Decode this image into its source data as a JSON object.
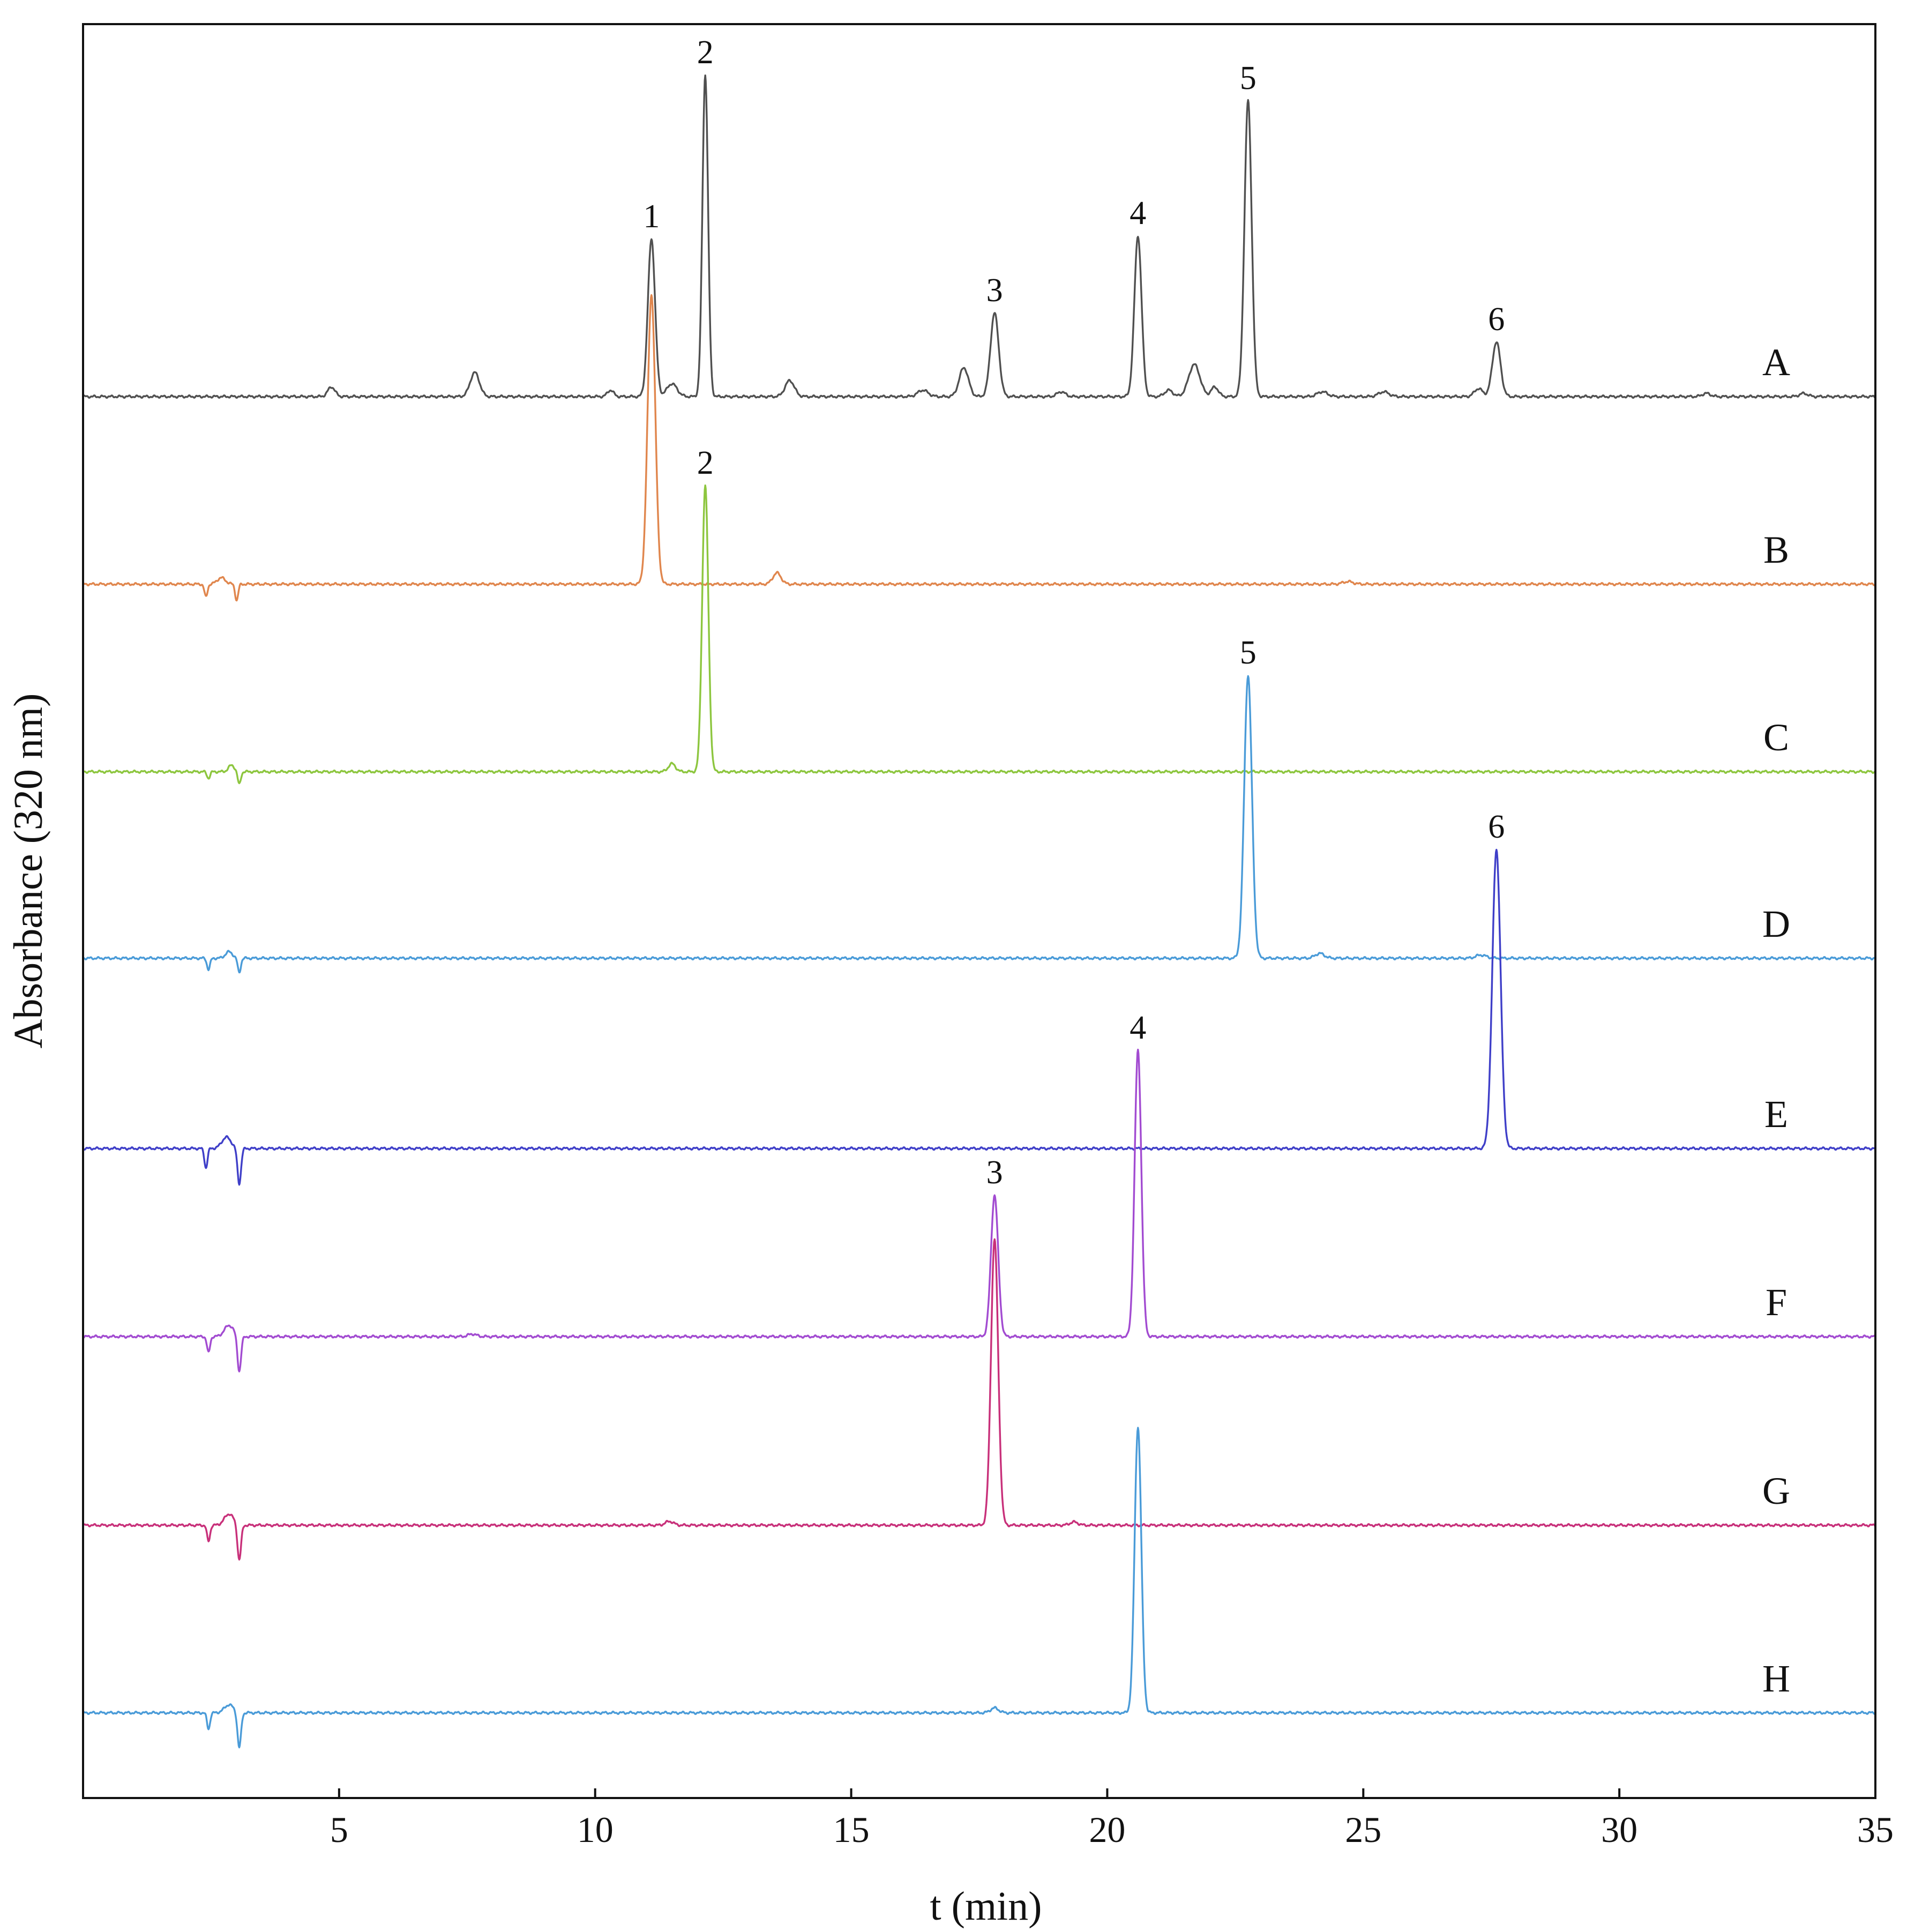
{
  "chart_data": {
    "type": "line",
    "title": "",
    "xlabel": "t (min)",
    "ylabel": "Absorbance (320 nm)",
    "xlim": [
      0,
      35
    ],
    "x_ticks": [
      5,
      10,
      15,
      20,
      25,
      30,
      35
    ],
    "grid": false,
    "legend": "none",
    "series": [
      {
        "name": "A",
        "color": "#505050",
        "peaks": [
          {
            "t": 4.85,
            "h": 0.03,
            "w": 0.07
          },
          {
            "t": 7.65,
            "h": 0.075,
            "w": 0.09
          },
          {
            "t": 10.3,
            "h": 0.02,
            "w": 0.06
          },
          {
            "t": 11.1,
            "h": 0.49,
            "w": 0.07,
            "label": "1"
          },
          {
            "t": 11.5,
            "h": 0.04,
            "w": 0.1
          },
          {
            "t": 12.15,
            "h": 1.0,
            "w": 0.055,
            "label": "2"
          },
          {
            "t": 13.8,
            "h": 0.05,
            "w": 0.09
          },
          {
            "t": 16.4,
            "h": 0.02,
            "w": 0.1
          },
          {
            "t": 17.2,
            "h": 0.09,
            "w": 0.09
          },
          {
            "t": 17.8,
            "h": 0.26,
            "w": 0.08,
            "label": "3"
          },
          {
            "t": 19.1,
            "h": 0.015,
            "w": 0.08
          },
          {
            "t": 20.6,
            "h": 0.5,
            "w": 0.07,
            "label": "4"
          },
          {
            "t": 21.2,
            "h": 0.02,
            "w": 0.08
          },
          {
            "t": 21.7,
            "h": 0.1,
            "w": 0.11
          },
          {
            "t": 22.1,
            "h": 0.03,
            "w": 0.07
          },
          {
            "t": 22.75,
            "h": 0.92,
            "w": 0.07,
            "label": "5"
          },
          {
            "t": 24.2,
            "h": 0.015,
            "w": 0.1
          },
          {
            "t": 25.4,
            "h": 0.015,
            "w": 0.1
          },
          {
            "t": 27.25,
            "h": 0.025,
            "w": 0.08
          },
          {
            "t": 27.6,
            "h": 0.17,
            "w": 0.08,
            "label": "6"
          },
          {
            "t": 31.7,
            "h": 0.01,
            "w": 0.08
          },
          {
            "t": 33.6,
            "h": 0.01,
            "w": 0.08
          }
        ]
      },
      {
        "name": "B",
        "color": "#E0864D",
        "peaks": [
          {
            "t": 2.4,
            "h": -0.04,
            "w": 0.03
          },
          {
            "t": 2.7,
            "h": 0.02,
            "w": 0.08
          },
          {
            "t": 3.0,
            "h": -0.05,
            "w": 0.03
          },
          {
            "t": 11.1,
            "h": 0.9,
            "w": 0.075
          },
          {
            "t": 13.55,
            "h": 0.035,
            "w": 0.08
          },
          {
            "t": 24.7,
            "h": 0.008,
            "w": 0.1
          }
        ]
      },
      {
        "name": "C",
        "color": "#8DC63F",
        "peaks": [
          {
            "t": 2.45,
            "h": -0.02,
            "w": 0.03
          },
          {
            "t": 2.9,
            "h": 0.02,
            "w": 0.06
          },
          {
            "t": 3.05,
            "h": -0.04,
            "w": 0.03
          },
          {
            "t": 11.5,
            "h": 0.025,
            "w": 0.07
          },
          {
            "t": 12.15,
            "h": 0.89,
            "w": 0.06,
            "label": "2"
          }
        ]
      },
      {
        "name": "D",
        "color": "#4A9BD8",
        "peaks": [
          {
            "t": 2.45,
            "h": -0.035,
            "w": 0.03
          },
          {
            "t": 2.85,
            "h": 0.02,
            "w": 0.07
          },
          {
            "t": 3.05,
            "h": -0.045,
            "w": 0.03
          },
          {
            "t": 22.75,
            "h": 0.88,
            "w": 0.075,
            "label": "5"
          },
          {
            "t": 24.15,
            "h": 0.015,
            "w": 0.09
          },
          {
            "t": 27.3,
            "h": 0.01,
            "w": 0.1
          }
        ]
      },
      {
        "name": "E",
        "color": "#3F3FC8",
        "peaks": [
          {
            "t": 2.4,
            "h": -0.06,
            "w": 0.03
          },
          {
            "t": 2.8,
            "h": 0.035,
            "w": 0.09
          },
          {
            "t": 3.05,
            "h": -0.11,
            "w": 0.035
          },
          {
            "t": 27.6,
            "h": 0.93,
            "w": 0.08,
            "label": "6"
          }
        ]
      },
      {
        "name": "F",
        "color": "#A24BD1",
        "peaks": [
          {
            "t": 2.45,
            "h": -0.05,
            "w": 0.03
          },
          {
            "t": 2.85,
            "h": 0.035,
            "w": 0.09
          },
          {
            "t": 3.05,
            "h": -0.11,
            "w": 0.035
          },
          {
            "t": 7.6,
            "h": 0.008,
            "w": 0.08
          },
          {
            "t": 17.8,
            "h": 0.44,
            "w": 0.07,
            "label": "3"
          },
          {
            "t": 20.6,
            "h": 0.89,
            "w": 0.065,
            "label": "4"
          }
        ]
      },
      {
        "name": "G",
        "color": "#C8307A",
        "peaks": [
          {
            "t": 2.45,
            "h": -0.05,
            "w": 0.03
          },
          {
            "t": 2.85,
            "h": 0.035,
            "w": 0.09
          },
          {
            "t": 3.05,
            "h": -0.11,
            "w": 0.035
          },
          {
            "t": 11.45,
            "h": 0.012,
            "w": 0.08
          },
          {
            "t": 17.8,
            "h": 0.89,
            "w": 0.07
          },
          {
            "t": 19.35,
            "h": 0.01,
            "w": 0.08
          }
        ]
      },
      {
        "name": "H",
        "color": "#4A9BD8",
        "peaks": [
          {
            "t": 2.45,
            "h": -0.05,
            "w": 0.03
          },
          {
            "t": 2.85,
            "h": 0.025,
            "w": 0.09
          },
          {
            "t": 3.05,
            "h": -0.11,
            "w": 0.035
          },
          {
            "t": 17.8,
            "h": 0.015,
            "w": 0.08
          },
          {
            "t": 20.6,
            "h": 0.89,
            "w": 0.065
          }
        ]
      }
    ]
  }
}
